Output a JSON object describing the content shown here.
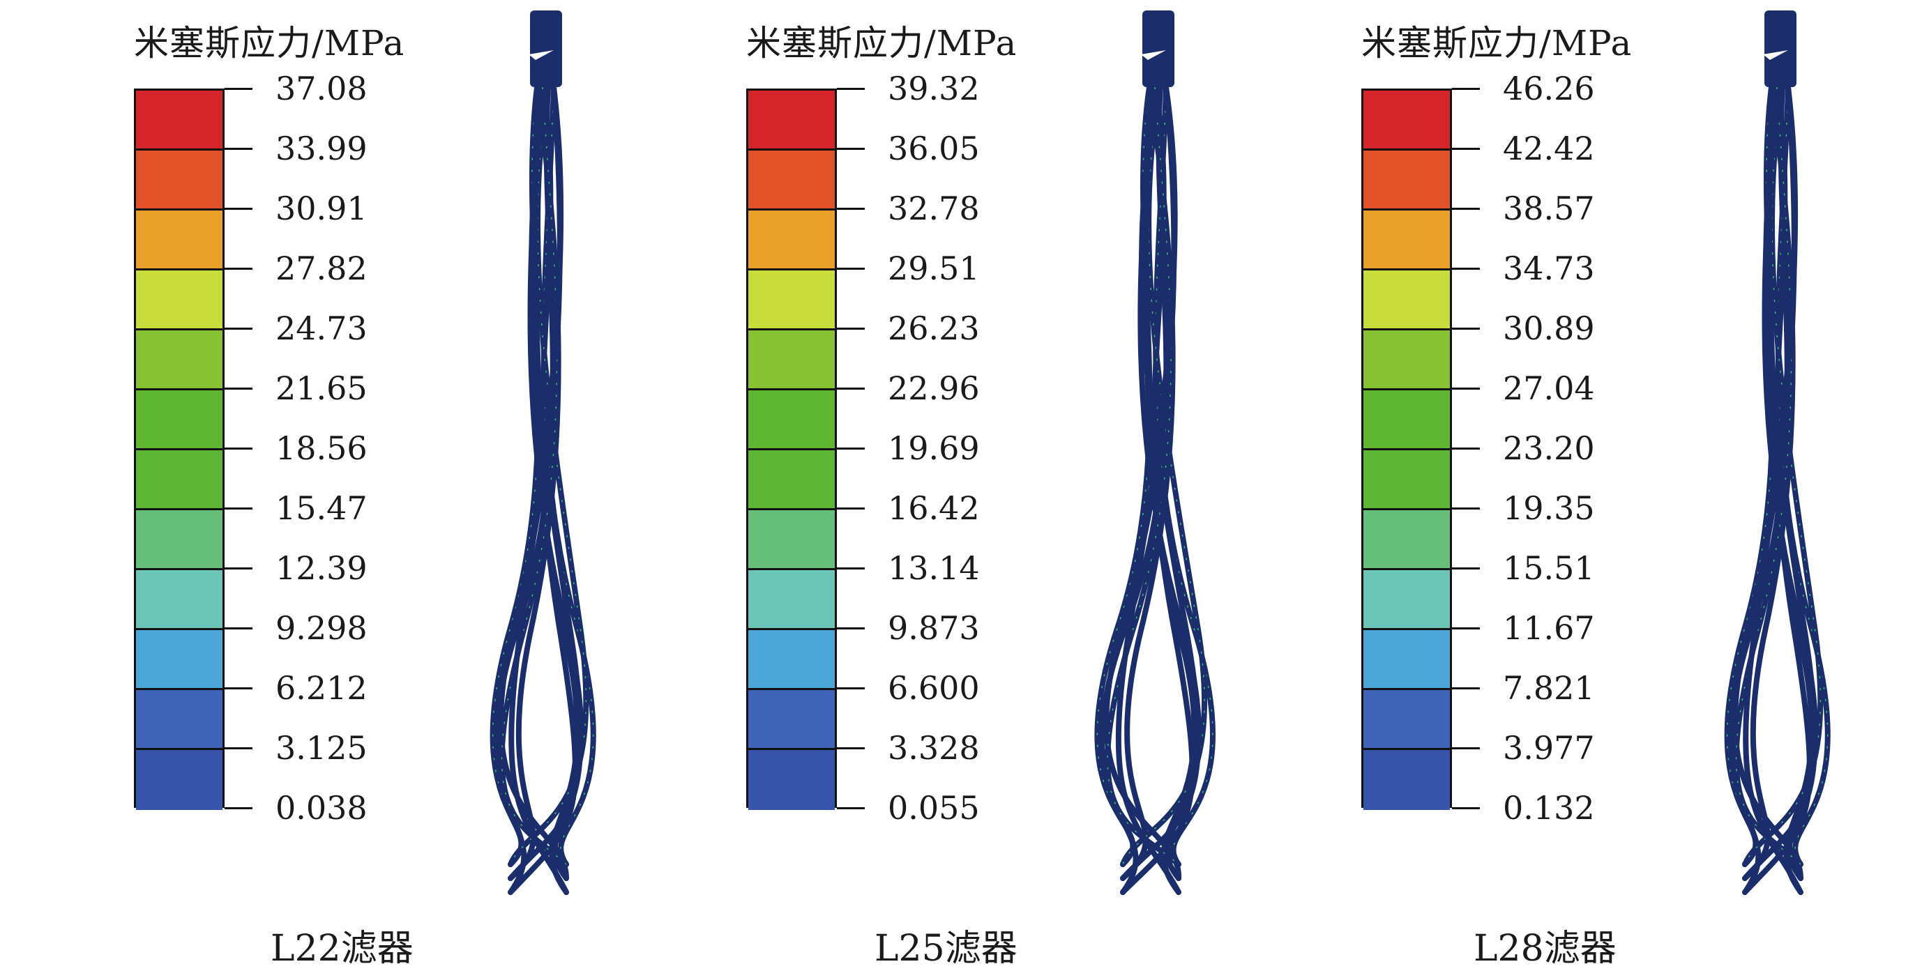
{
  "colors": {
    "bands_top_to_bottom": [
      "#d6262b",
      "#e2532a",
      "#e9a12a",
      "#c8dc3b",
      "#86c232",
      "#60b734",
      "#5db635",
      "#66c07a",
      "#6cc6b8",
      "#4aa7d8",
      "#3f63b6",
      "#3854aa"
    ],
    "filter_wire": "#1c2d6b",
    "filter_highlight": "#3fc07a"
  },
  "panels": [
    {
      "legend_title": "米塞斯应力/MPa",
      "ticks": [
        "37.08",
        "33.99",
        "30.91",
        "27.82",
        "24.73",
        "21.65",
        "18.56",
        "15.47",
        "12.39",
        "9.298",
        "6.212",
        "3.125",
        "0.038"
      ],
      "caption": "L22滤器",
      "filter_icon": "stent-filter-icon"
    },
    {
      "legend_title": "米塞斯应力/MPa",
      "ticks": [
        "39.32",
        "36.05",
        "32.78",
        "29.51",
        "26.23",
        "22.96",
        "19.69",
        "16.42",
        "13.14",
        "9.873",
        "6.600",
        "3.328",
        "0.055"
      ],
      "caption": "L25滤器",
      "filter_icon": "stent-filter-icon"
    },
    {
      "legend_title": "米塞斯应力/MPa",
      "ticks": [
        "46.26",
        "42.42",
        "38.57",
        "34.73",
        "30.89",
        "27.04",
        "23.20",
        "19.35",
        "15.51",
        "11.67",
        "7.821",
        "3.977",
        "0.132"
      ],
      "caption": "L28滤器",
      "filter_icon": "stent-filter-icon"
    }
  ]
}
